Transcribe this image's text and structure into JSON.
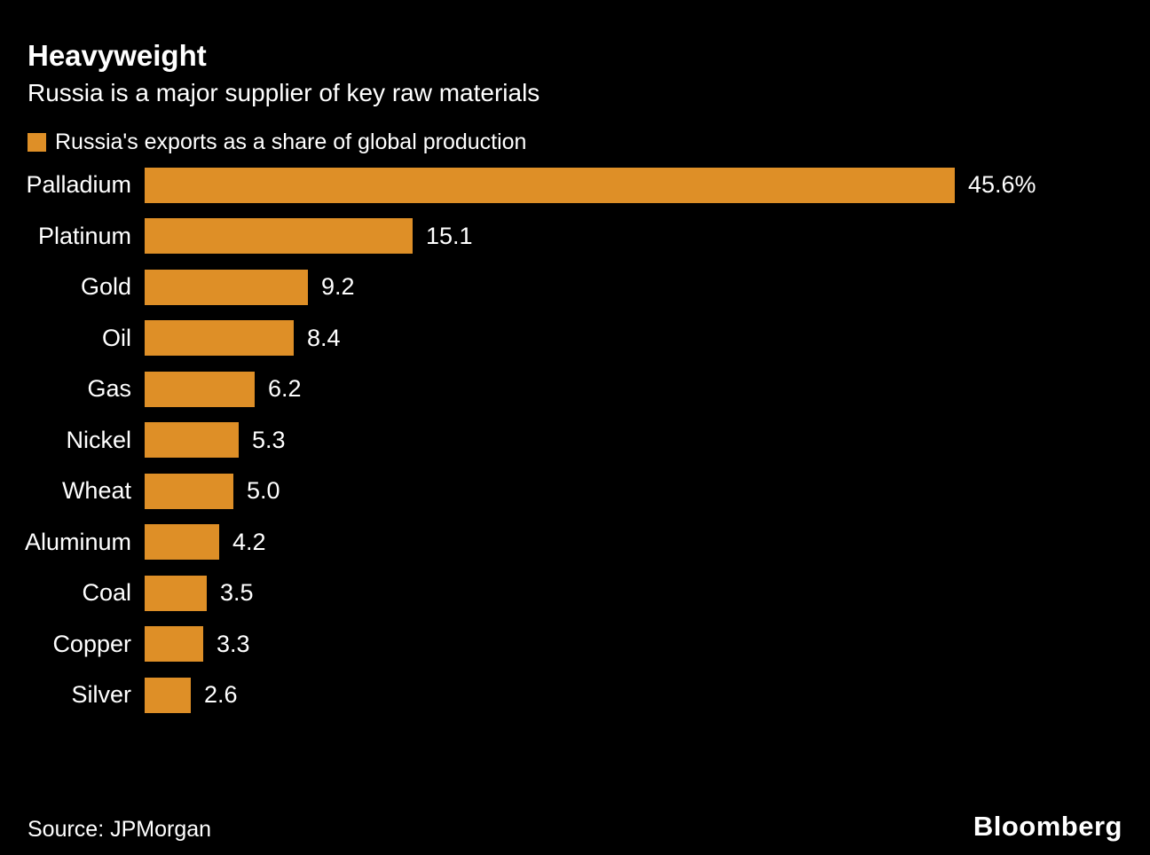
{
  "title": "Heavyweight",
  "subtitle": "Russia is a major supplier of key raw materials",
  "legend": {
    "label": "Russia's exports as a share of global production",
    "swatch_color": "#DE8F27"
  },
  "colors": {
    "background": "#000000",
    "bar": "#DE8F27",
    "text": "#ffffff"
  },
  "chart_data": {
    "type": "bar",
    "orientation": "horizontal",
    "title": "Heavyweight",
    "subtitle": "Russia is a major supplier of key raw materials",
    "series_name": "Russia's exports as a share of global production",
    "categories": [
      "Palladium",
      "Platinum",
      "Gold",
      "Oil",
      "Gas",
      "Nickel",
      "Wheat",
      "Aluminum",
      "Coal",
      "Copper",
      "Silver"
    ],
    "values": [
      45.6,
      15.1,
      9.2,
      8.4,
      6.2,
      5.3,
      5.0,
      4.2,
      3.5,
      3.3,
      2.6
    ],
    "value_labels": [
      "45.6%",
      "15.1",
      "9.2",
      "8.4",
      "6.2",
      "5.3",
      "5.0",
      "4.2",
      "3.5",
      "3.3",
      "2.6"
    ],
    "unit": "%",
    "xlim": [
      0,
      50
    ],
    "grid": false,
    "legend_position": "top-left"
  },
  "footer": {
    "source": "Source: JPMorgan",
    "logo": "Bloomberg"
  }
}
